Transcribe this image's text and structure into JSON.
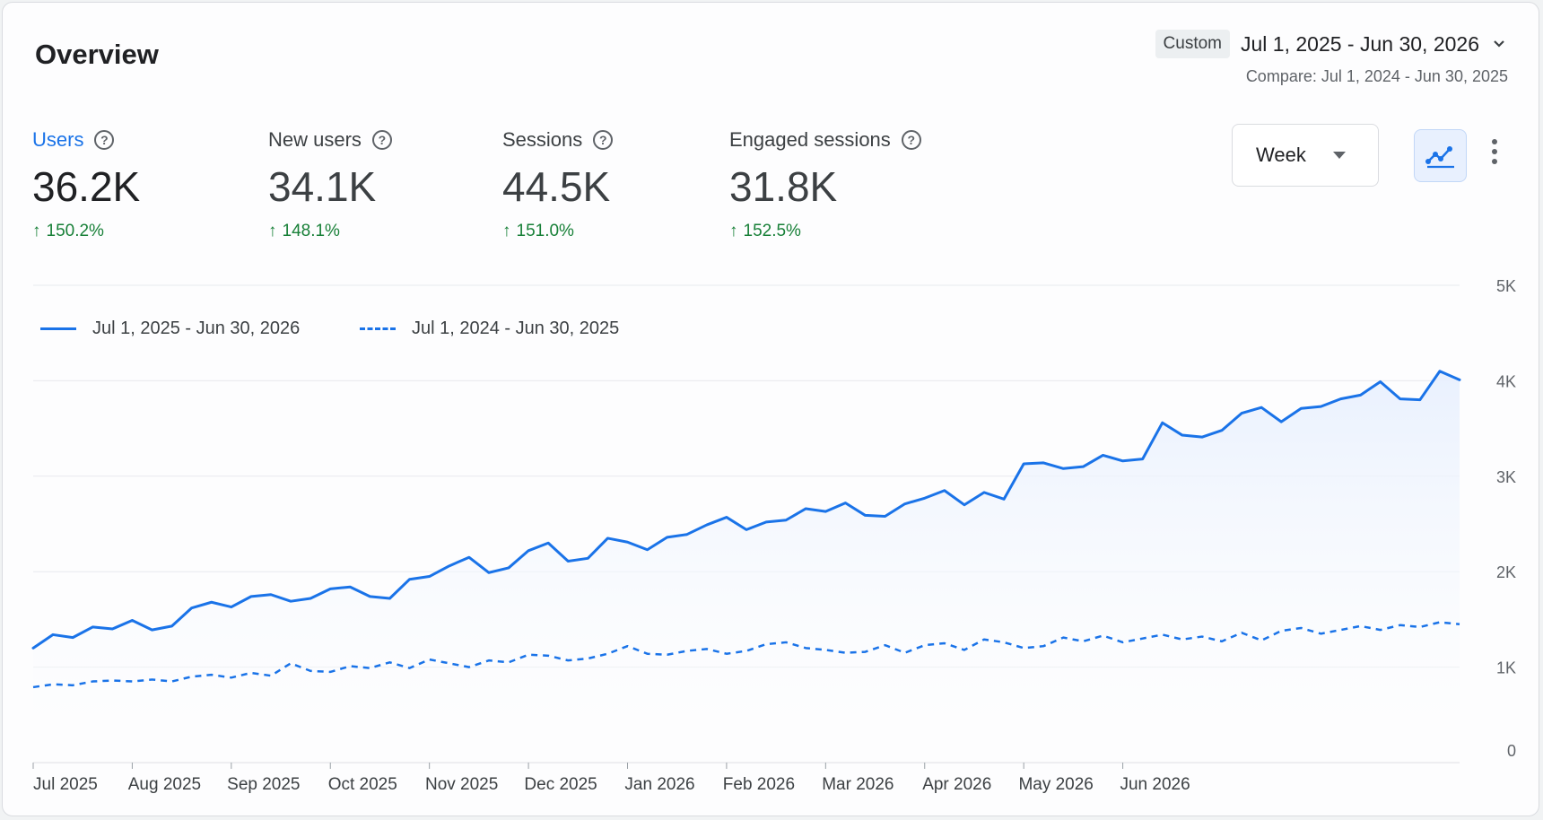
{
  "header": {
    "title": "Overview",
    "date_tag": "Custom",
    "date_range": "Jul 1, 2025 - Jun 30, 2026",
    "compare": "Compare: Jul 1, 2024 - Jun 30, 2025"
  },
  "metrics": [
    {
      "label": "Users",
      "value": "36.2K",
      "change": "150.2%",
      "active": true
    },
    {
      "label": "New users",
      "value": "34.1K",
      "change": "148.1%"
    },
    {
      "label": "Sessions",
      "value": "44.5K",
      "change": "151.0%"
    },
    {
      "label": "Engaged sessions",
      "value": "31.8K",
      "change": "152.5%"
    }
  ],
  "controls": {
    "granularity": "Week",
    "chart_type_icon": "line-chart-icon",
    "more_icon": "more-vert-icon"
  },
  "colors": {
    "accent": "#1a73e8",
    "positive": "#188038",
    "area_fill": "#e8f0fe"
  },
  "chart_data": {
    "type": "line",
    "legend_position": "top-left",
    "grid": true,
    "y_axis_position": "right",
    "ylim": [
      0,
      5000
    ],
    "y_ticks": [
      0,
      1000,
      2000,
      3000,
      4000,
      5000
    ],
    "y_tick_labels": [
      "0",
      "1K",
      "2K",
      "3K",
      "4K",
      "5K"
    ],
    "x_tick_labels": [
      "Jul 2025",
      "Aug 2025",
      "Sep 2025",
      "Oct 2025",
      "Nov 2025",
      "Dec 2025",
      "Jan 2026",
      "Feb 2026",
      "Mar 2026",
      "Apr 2026",
      "May 2026",
      "Jun 2026"
    ],
    "x_tick_weeks": [
      0,
      5,
      10,
      15,
      20,
      25,
      30,
      35,
      40,
      45,
      50,
      55
    ],
    "series": [
      {
        "name": "Jul 1, 2025 - Jun 30, 2026",
        "style": "solid",
        "values": [
          1200,
          1340,
          1310,
          1420,
          1400,
          1490,
          1390,
          1430,
          1620,
          1680,
          1630,
          1740,
          1760,
          1690,
          1720,
          1820,
          1840,
          1740,
          1720,
          1920,
          1950,
          2060,
          2150,
          1990,
          2040,
          2220,
          2300,
          2110,
          2140,
          2350,
          2310,
          2230,
          2360,
          2390,
          2490,
          2570,
          2440,
          2520,
          2540,
          2660,
          2630,
          2720,
          2590,
          2580,
          2710,
          2770,
          2850,
          2700,
          2830,
          2760,
          3130,
          3140,
          3080,
          3100,
          3220,
          3160,
          3180,
          3560,
          3430,
          3410,
          3480,
          3660,
          3720,
          3570,
          3710,
          3730,
          3810,
          3850,
          3990,
          3810,
          3800,
          4100,
          4010
        ]
      },
      {
        "name": "Jul 1, 2024 - Jun 30, 2025",
        "style": "dashed",
        "values": [
          790,
          820,
          810,
          850,
          860,
          850,
          870,
          850,
          900,
          920,
          890,
          940,
          910,
          1040,
          960,
          950,
          1010,
          990,
          1050,
          990,
          1080,
          1040,
          1000,
          1070,
          1050,
          1130,
          1120,
          1070,
          1090,
          1140,
          1220,
          1140,
          1130,
          1170,
          1190,
          1140,
          1170,
          1240,
          1260,
          1200,
          1180,
          1150,
          1160,
          1230,
          1150,
          1230,
          1250,
          1180,
          1290,
          1260,
          1200,
          1220,
          1310,
          1270,
          1330,
          1260,
          1300,
          1340,
          1290,
          1320,
          1270,
          1360,
          1280,
          1380,
          1410,
          1350,
          1390,
          1430,
          1390,
          1440,
          1420,
          1470,
          1450
        ]
      }
    ]
  }
}
